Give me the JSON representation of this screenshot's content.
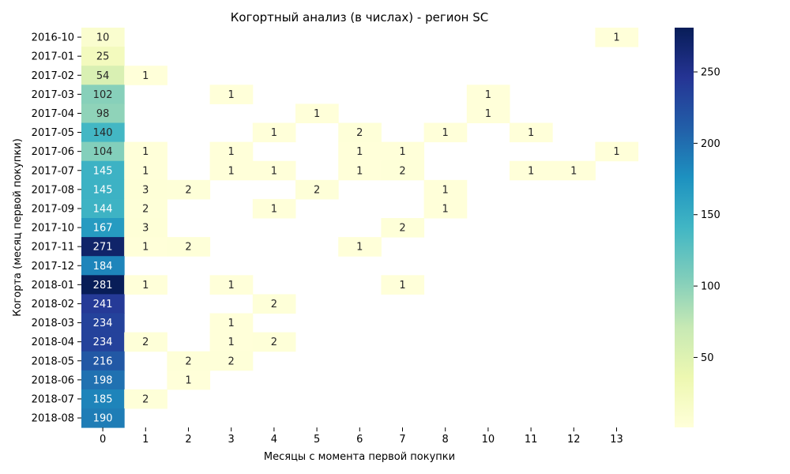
{
  "chart_data": {
    "type": "heatmap",
    "title": "Когортный анализ (в числах) - регион SC",
    "xlabel": "Месяцы с момента первой покупки",
    "ylabel": "Когорта (месяц первой покупки)",
    "x_categories": [
      "0",
      "1",
      "2",
      "3",
      "4",
      "5",
      "6",
      "7",
      "8",
      "10",
      "11",
      "12",
      "13"
    ],
    "y_categories": [
      "2016-10",
      "2017-01",
      "2017-02",
      "2017-03",
      "2017-04",
      "2017-05",
      "2017-06",
      "2017-07",
      "2017-08",
      "2017-09",
      "2017-10",
      "2017-11",
      "2017-12",
      "2018-01",
      "2018-02",
      "2018-03",
      "2018-04",
      "2018-05",
      "2018-06",
      "2018-07",
      "2018-08"
    ],
    "values": [
      [
        10,
        null,
        null,
        null,
        null,
        null,
        null,
        null,
        null,
        null,
        null,
        null,
        1
      ],
      [
        25,
        null,
        null,
        null,
        null,
        null,
        null,
        null,
        null,
        null,
        null,
        null,
        null
      ],
      [
        54,
        1,
        null,
        null,
        null,
        null,
        null,
        null,
        null,
        null,
        null,
        null,
        null
      ],
      [
        102,
        null,
        null,
        1,
        null,
        null,
        null,
        null,
        null,
        1,
        null,
        null,
        null
      ],
      [
        98,
        null,
        null,
        null,
        null,
        1,
        null,
        null,
        null,
        1,
        null,
        null,
        null
      ],
      [
        140,
        null,
        null,
        null,
        1,
        null,
        2,
        null,
        1,
        null,
        1,
        null,
        null
      ],
      [
        104,
        1,
        null,
        1,
        null,
        null,
        1,
        1,
        null,
        null,
        null,
        null,
        1
      ],
      [
        145,
        1,
        null,
        1,
        1,
        null,
        1,
        2,
        null,
        null,
        1,
        1,
        null
      ],
      [
        145,
        3,
        2,
        null,
        null,
        2,
        null,
        null,
        1,
        null,
        null,
        null,
        null
      ],
      [
        144,
        2,
        null,
        null,
        1,
        null,
        null,
        null,
        1,
        null,
        null,
        null,
        null
      ],
      [
        167,
        3,
        null,
        null,
        null,
        null,
        null,
        2,
        null,
        null,
        null,
        null,
        null
      ],
      [
        271,
        1,
        2,
        null,
        null,
        null,
        1,
        null,
        null,
        null,
        null,
        null,
        null
      ],
      [
        184,
        null,
        null,
        null,
        null,
        null,
        null,
        null,
        null,
        null,
        null,
        null,
        null
      ],
      [
        281,
        1,
        null,
        1,
        null,
        null,
        null,
        1,
        null,
        null,
        null,
        null,
        null
      ],
      [
        241,
        null,
        null,
        null,
        2,
        null,
        null,
        null,
        null,
        null,
        null,
        null,
        null
      ],
      [
        234,
        null,
        null,
        1,
        null,
        null,
        null,
        null,
        null,
        null,
        null,
        null,
        null
      ],
      [
        234,
        2,
        null,
        1,
        2,
        null,
        null,
        null,
        null,
        null,
        null,
        null,
        null
      ],
      [
        216,
        null,
        2,
        2,
        null,
        null,
        null,
        null,
        null,
        null,
        null,
        null,
        null
      ],
      [
        198,
        null,
        1,
        null,
        null,
        null,
        null,
        null,
        null,
        null,
        null,
        null,
        null
      ],
      [
        185,
        2,
        null,
        null,
        null,
        null,
        null,
        null,
        null,
        null,
        null,
        null,
        null
      ],
      [
        190,
        null,
        null,
        null,
        null,
        null,
        null,
        null,
        null,
        null,
        null,
        null,
        null
      ]
    ],
    "colormap": "YlGnBu",
    "color_range": [
      1,
      281
    ],
    "colorbar_ticks": [
      50,
      100,
      150,
      200,
      250
    ],
    "legend": "colorbar-right",
    "grid": false
  }
}
